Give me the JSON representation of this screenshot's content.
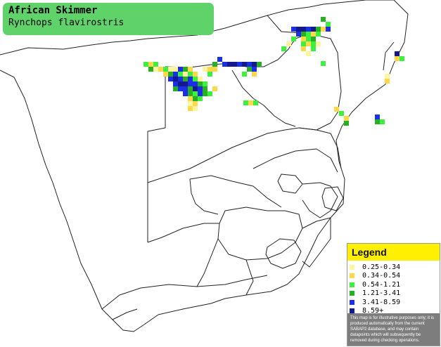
{
  "title": {
    "common_name": "African Skimmer",
    "scientific_name": "Rynchops flavirostris"
  },
  "legend": {
    "title": "Legend",
    "items": [
      {
        "label": "0.25-0.34",
        "color": "#fff5a0"
      },
      {
        "label": "0.34-0.54",
        "color": "#ffd84a"
      },
      {
        "label": "0.54-1.21",
        "color": "#3df03d"
      },
      {
        "label": "1.21-3.41",
        "color": "#27b024"
      },
      {
        "label": "3.41-8.59",
        "color": "#1b2fe6"
      },
      {
        "label": "8.59+",
        "color": "#141a8c"
      }
    ],
    "note": "This map is for illustrative purposes only; it is produced automatically from the current SABAP2 database, and may contain datapoints which will subsequently be removed during checking operations."
  }
}
